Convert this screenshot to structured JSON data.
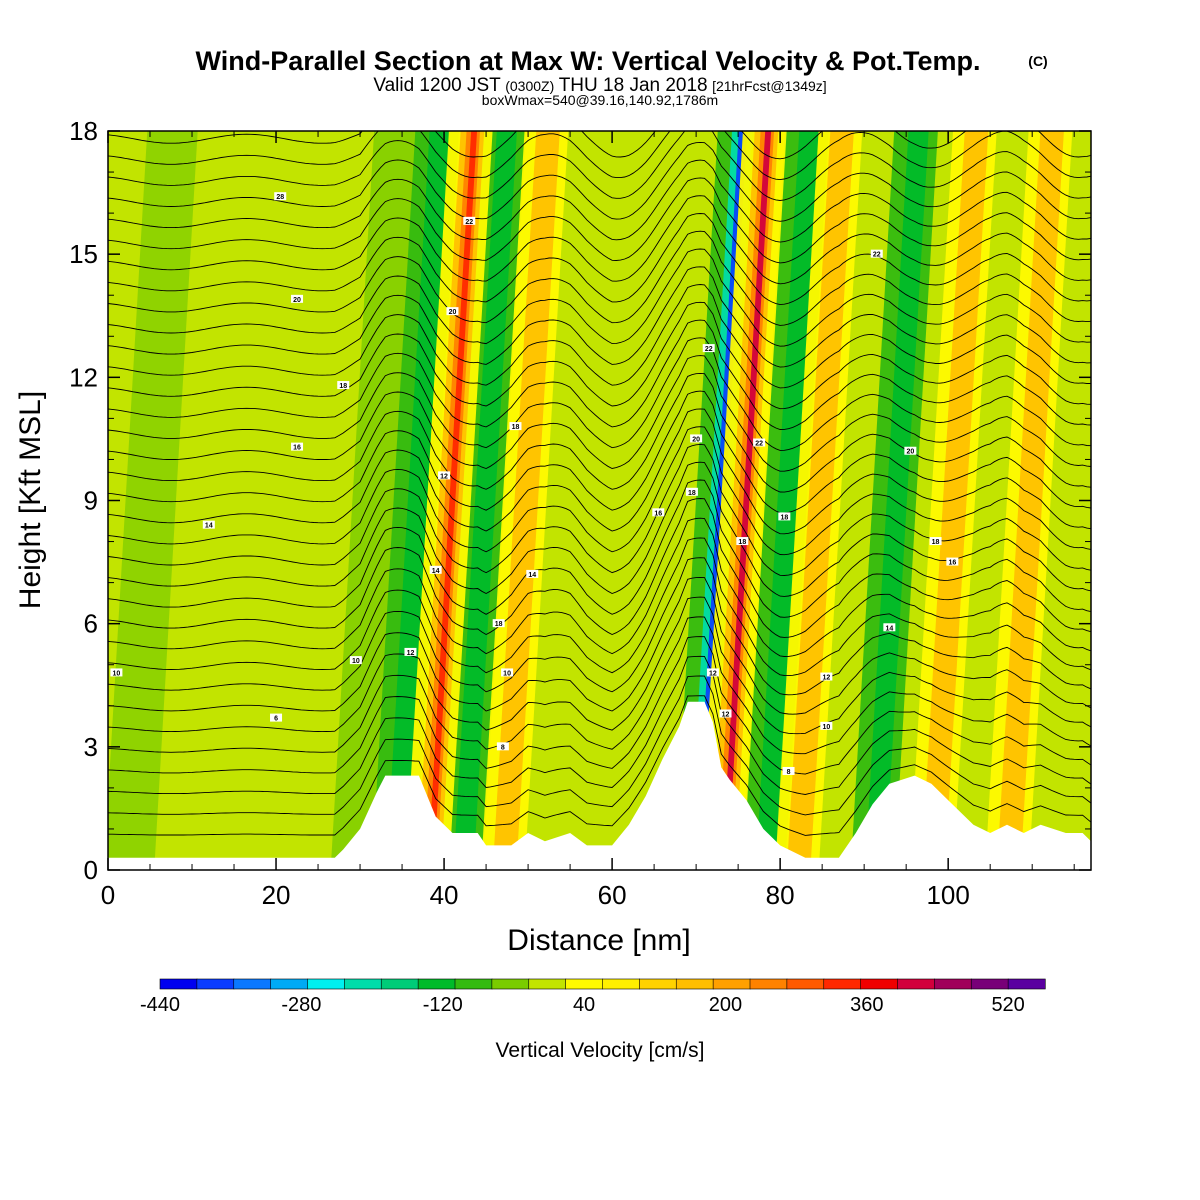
{
  "header": {
    "title": "Wind-Parallel Section at Max W: Vertical Velocity & Pot.Temp.",
    "title_mark": "(C)",
    "valid_a": "Valid 1200 JST",
    "valid_b": "(0300Z)",
    "valid_c": "THU 18 Jan 2018",
    "valid_d": "[21hrFcst@1349z]",
    "box_info": "boxWmax=540@39.16,140.92,1786m"
  },
  "chart_data": {
    "type": "heatmap",
    "xlabel": "Distance [nm]",
    "ylabel": "Height [Kft MSL]",
    "xlim": [
      0,
      117
    ],
    "ylim": [
      0,
      18
    ],
    "x_ticks": [
      "0",
      "20",
      "40",
      "60",
      "80",
      "100"
    ],
    "x_tick_values": [
      0,
      20,
      40,
      60,
      80,
      100
    ],
    "y_ticks": [
      "0",
      "3",
      "6",
      "9",
      "12",
      "15",
      "18"
    ],
    "y_tick_values": [
      0,
      3,
      6,
      9,
      12,
      15,
      18
    ],
    "field": "vertical velocity (shaded), potential temperature (contours)",
    "vertical_velocity_max_cm_s": 540,
    "vertical_velocity_max_location_nm": 74,
    "updraft_bands_nm": [
      39,
      48,
      74,
      83,
      99,
      108
    ],
    "downdraft_bands_nm": [
      35,
      43,
      71,
      79,
      92
    ],
    "terrain_kft": [
      [
        0,
        0.3
      ],
      [
        27,
        0.3
      ],
      [
        28,
        0.5
      ],
      [
        30,
        1.0
      ],
      [
        32,
        1.9
      ],
      [
        33,
        2.3
      ],
      [
        37,
        2.3
      ],
      [
        38,
        1.8
      ],
      [
        39,
        1.3
      ],
      [
        41,
        0.9
      ],
      [
        44,
        0.9
      ],
      [
        45,
        0.6
      ],
      [
        48,
        0.6
      ],
      [
        50,
        0.9
      ],
      [
        52,
        0.7
      ],
      [
        55,
        0.9
      ],
      [
        57,
        0.6
      ],
      [
        60,
        0.6
      ],
      [
        62,
        1.1
      ],
      [
        64,
        1.8
      ],
      [
        66,
        2.7
      ],
      [
        68,
        3.5
      ],
      [
        69,
        4.1
      ],
      [
        71,
        4.1
      ],
      [
        72,
        3.6
      ],
      [
        73,
        2.5
      ],
      [
        74,
        2.2
      ],
      [
        76,
        1.7
      ],
      [
        78,
        1.0
      ],
      [
        80,
        0.6
      ],
      [
        83,
        0.3
      ],
      [
        87,
        0.3
      ],
      [
        89,
        0.9
      ],
      [
        91,
        1.6
      ],
      [
        93,
        2.1
      ],
      [
        96,
        2.3
      ],
      [
        98,
        2.1
      ],
      [
        100,
        1.7
      ],
      [
        103,
        1.1
      ],
      [
        105,
        0.9
      ],
      [
        107,
        1.1
      ],
      [
        109,
        0.9
      ],
      [
        111,
        1.1
      ],
      [
        114,
        0.9
      ],
      [
        116,
        0.9
      ],
      [
        117,
        0.7
      ]
    ],
    "contour_labels": [
      {
        "x": 1,
        "y": 4.8,
        "text": "10"
      },
      {
        "x": 20,
        "y": 3.7,
        "text": "6"
      },
      {
        "x": 29.5,
        "y": 5.1,
        "text": "10"
      },
      {
        "x": 12,
        "y": 8.4,
        "text": "14"
      },
      {
        "x": 22.5,
        "y": 10.3,
        "text": "16"
      },
      {
        "x": 28,
        "y": 11.8,
        "text": "18"
      },
      {
        "x": 22.5,
        "y": 13.9,
        "text": "20"
      },
      {
        "x": 20.5,
        "y": 16.4,
        "text": "28"
      },
      {
        "x": 36,
        "y": 5.3,
        "text": "12"
      },
      {
        "x": 39,
        "y": 7.3,
        "text": "14"
      },
      {
        "x": 40,
        "y": 9.6,
        "text": "12"
      },
      {
        "x": 41,
        "y": 13.6,
        "text": "20"
      },
      {
        "x": 43,
        "y": 15.8,
        "text": "22"
      },
      {
        "x": 47,
        "y": 3.0,
        "text": "8"
      },
      {
        "x": 47.5,
        "y": 4.8,
        "text": "10"
      },
      {
        "x": 46.5,
        "y": 6.0,
        "text": "18"
      },
      {
        "x": 48.5,
        "y": 10.8,
        "text": "18"
      },
      {
        "x": 50.5,
        "y": 7.2,
        "text": "14"
      },
      {
        "x": 65.5,
        "y": 8.7,
        "text": "16"
      },
      {
        "x": 69.5,
        "y": 9.2,
        "text": "18"
      },
      {
        "x": 70,
        "y": 10.5,
        "text": "20"
      },
      {
        "x": 71.5,
        "y": 12.7,
        "text": "22"
      },
      {
        "x": 72,
        "y": 4.8,
        "text": "12"
      },
      {
        "x": 73.5,
        "y": 3.8,
        "text": "12"
      },
      {
        "x": 75.5,
        "y": 8.0,
        "text": "18"
      },
      {
        "x": 77.5,
        "y": 10.4,
        "text": "22"
      },
      {
        "x": 80.5,
        "y": 8.6,
        "text": "18"
      },
      {
        "x": 81,
        "y": 2.4,
        "text": "8"
      },
      {
        "x": 85.5,
        "y": 3.5,
        "text": "10"
      },
      {
        "x": 85.5,
        "y": 4.7,
        "text": "12"
      },
      {
        "x": 93,
        "y": 5.9,
        "text": "14"
      },
      {
        "x": 95.5,
        "y": 10.2,
        "text": "20"
      },
      {
        "x": 98.5,
        "y": 8.0,
        "text": "18"
      },
      {
        "x": 100.5,
        "y": 7.5,
        "text": "16"
      },
      {
        "x": 91.5,
        "y": 15.0,
        "text": "22"
      }
    ]
  },
  "colorbar": {
    "label": "Vertical Velocity [cm/s]",
    "tick_labels": [
      "-440",
      "-280",
      "-120",
      "40",
      "200",
      "360",
      "520"
    ],
    "colors": [
      "#0000f0",
      "#0a3cff",
      "#0a78ff",
      "#00aaf5",
      "#00f0f0",
      "#00dcaa",
      "#00cc78",
      "#00bb2a",
      "#34bb10",
      "#7acc00",
      "#c2e400",
      "#fffa00",
      "#fff000",
      "#ffd200",
      "#ffbe00",
      "#ffa000",
      "#ff8200",
      "#ff5a00",
      "#ff2800",
      "#f00000",
      "#d2003c",
      "#a0005a",
      "#780078",
      "#5a00a0"
    ]
  }
}
